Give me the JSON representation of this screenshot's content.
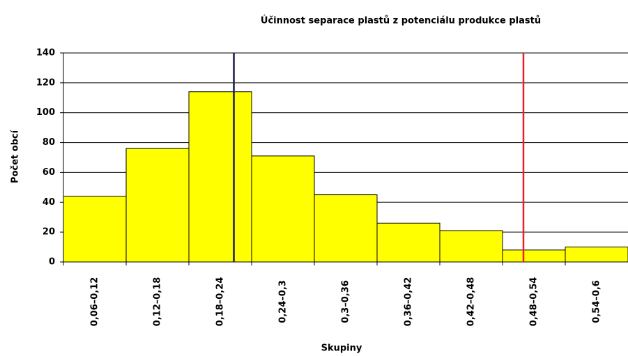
{
  "chart_data": {
    "type": "bar",
    "title": "Účinnost separace plastů z potenciálu produkce plastů",
    "x_label": "Skupiny",
    "y_label": "Počet obcí",
    "categories": [
      "0,06–0,12",
      "0,12–0,18",
      "0,18–0,24",
      "0,24–0,3",
      "0,3–0,36",
      "0,36–0,42",
      "0,42–0,48",
      "0,48–0,54",
      "0,54–0,6"
    ],
    "values": [
      44,
      76,
      114,
      71,
      45,
      26,
      21,
      8,
      10
    ],
    "color": "#ffff00",
    "ylim": [
      0,
      140
    ],
    "yticks": [
      0,
      20,
      40,
      60,
      80,
      100,
      120,
      140
    ],
    "grid": true,
    "xlim": [
      0.06,
      0.6
    ],
    "vlines": [
      {
        "value": 0.223,
        "color": "#1a1a4a"
      },
      {
        "value": 0.5,
        "color": "#e8202a"
      }
    ]
  }
}
